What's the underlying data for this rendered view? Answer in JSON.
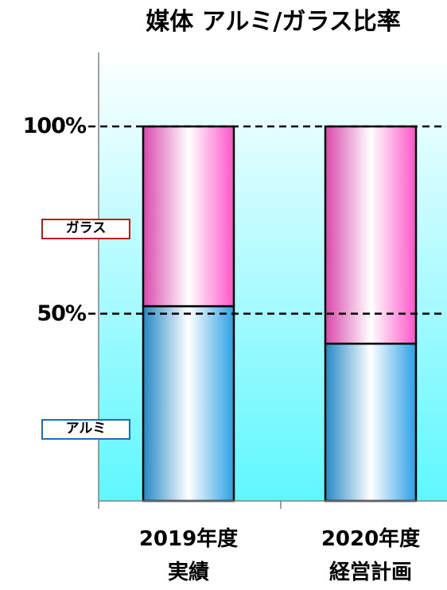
{
  "chart_data": {
    "type": "bar",
    "stacked": true,
    "title": "媒体 アルミ/ガラス比率",
    "categories": [
      {
        "line1": "2019年度",
        "line2": "実績"
      },
      {
        "line1": "2020年度",
        "line2": "経営計画"
      }
    ],
    "series": [
      {
        "name": "アルミ",
        "values": [
          52,
          42
        ],
        "color": "#2aa0e6",
        "legend_border": "#1a6fb8"
      },
      {
        "name": "ガラス",
        "values": [
          48,
          58
        ],
        "color": "#ff55c8",
        "legend_border": "#b81e1e"
      }
    ],
    "reference_lines": [
      {
        "value": 100,
        "label": "100%"
      },
      {
        "value": 50,
        "label": "50%"
      }
    ],
    "ylim": [
      0,
      100
    ],
    "grid": false,
    "legend_position": "left"
  }
}
